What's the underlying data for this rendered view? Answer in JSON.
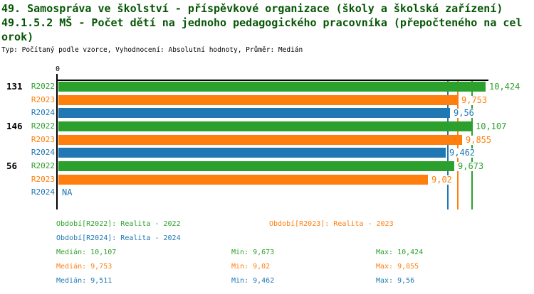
{
  "header": {
    "title_line1": "49. Samospráva ve školství - příspěvkové organizace (školy a školská zařízení)",
    "title_line2": "49.1.5.2 MŠ - Počet dětí na jednoho pedagogického pracovníka (přepočteného na cel",
    "title_line3": "orok)",
    "meta": "Typ: Počítaný podle vzorce, Vyhodnocení: Absolutní hodnoty, Průměr: Medián"
  },
  "colors": {
    "green": "#2ca02c",
    "orange": "#ff7f0e",
    "blue": "#1f77b4",
    "title": "#075607",
    "axis": "#000000"
  },
  "chart_data": {
    "type": "bar",
    "orientation": "horizontal",
    "x_axis": {
      "zero_label": "0",
      "min": 0,
      "max": 10.5,
      "grid": false
    },
    "na_text": "NA",
    "groups": [
      {
        "label": "131",
        "bars": [
          {
            "series": "R2022",
            "value": 10.424,
            "value_label": "10,424",
            "color_key": "green"
          },
          {
            "series": "R2023",
            "value": 9.753,
            "value_label": "9,753",
            "color_key": "orange"
          },
          {
            "series": "R2024",
            "value": 9.56,
            "value_label": "9,56",
            "color_key": "blue"
          }
        ]
      },
      {
        "label": "146",
        "bars": [
          {
            "series": "R2022",
            "value": 10.107,
            "value_label": "10,107",
            "color_key": "green"
          },
          {
            "series": "R2023",
            "value": 9.855,
            "value_label": "9,855",
            "color_key": "orange"
          },
          {
            "series": "R2024",
            "value": 9.462,
            "value_label": "9,462",
            "color_key": "blue"
          }
        ]
      },
      {
        "label": "56",
        "bars": [
          {
            "series": "R2022",
            "value": 9.673,
            "value_label": "9,673",
            "color_key": "green"
          },
          {
            "series": "R2023",
            "value": 9.02,
            "value_label": "9,02",
            "color_key": "orange"
          },
          {
            "series": "R2024",
            "value": null,
            "value_label": "NA",
            "color_key": "blue"
          }
        ]
      }
    ],
    "median_lines": [
      {
        "series": "R2024",
        "value": 9.511,
        "color_key": "blue"
      },
      {
        "series": "R2023",
        "value": 9.753,
        "color_key": "orange"
      },
      {
        "series": "R2022",
        "value": 10.107,
        "color_key": "green"
      }
    ]
  },
  "legend": {
    "items": [
      {
        "text": "Období[R2022]: Realita - 2022",
        "color_key": "green"
      },
      {
        "text": "Období[R2023]: Realita - 2023",
        "color_key": "orange"
      },
      {
        "text": "Období[R2024]: Realita - 2024",
        "color_key": "blue"
      }
    ]
  },
  "stats": {
    "rows": [
      {
        "color_key": "green",
        "median": "Medián: 10,107",
        "min": "Min: 9,673",
        "max": "Max: 10,424"
      },
      {
        "color_key": "orange",
        "median": "Medián: 9,753",
        "min": "Min: 9,02",
        "max": "Max: 9,855"
      },
      {
        "color_key": "blue",
        "median": "Medián: 9,511",
        "min": "Min: 9,462",
        "max": "Max: 9,56"
      }
    ]
  }
}
